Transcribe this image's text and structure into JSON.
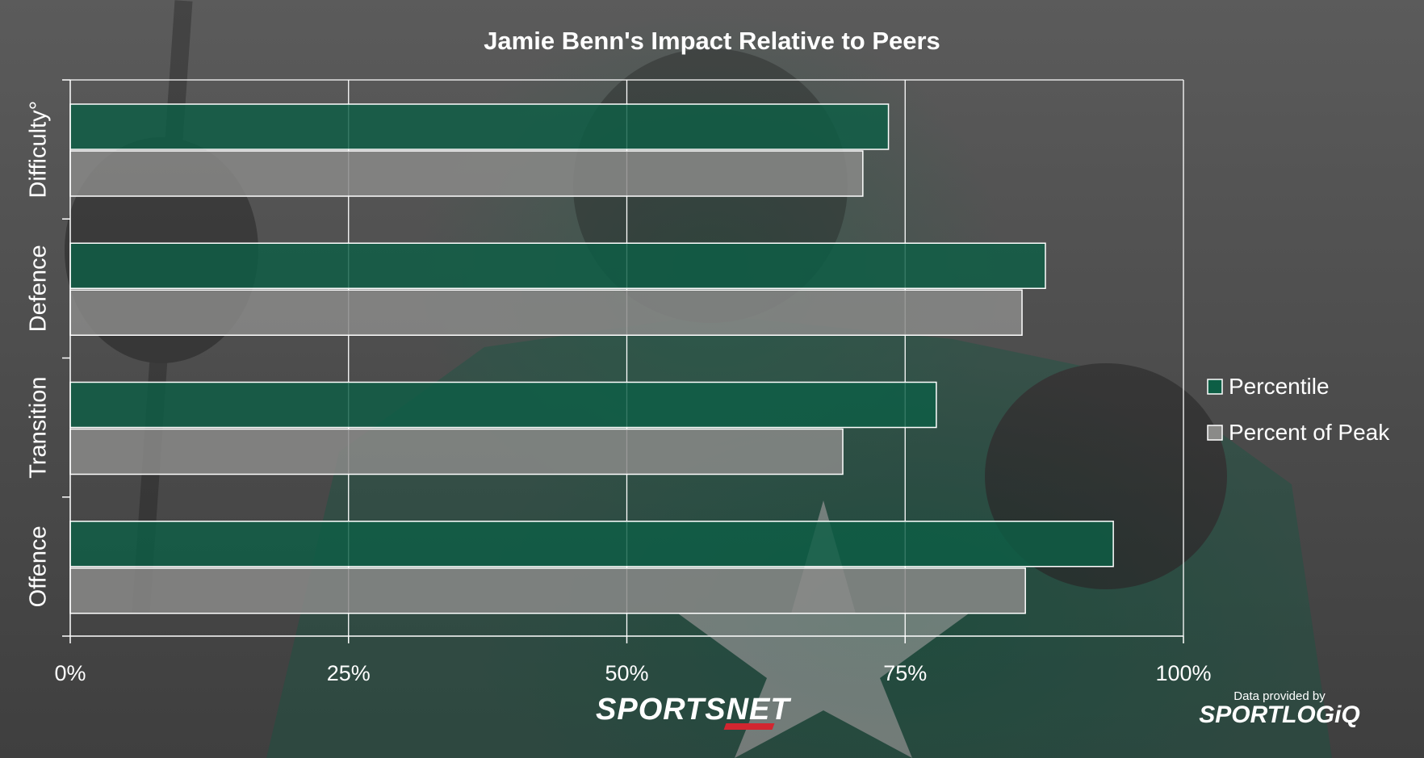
{
  "chart_data": {
    "type": "bar",
    "orientation": "horizontal",
    "title": "Jamie Benn's Impact Relative to Peers",
    "categories": [
      "Difficulty°",
      "Defence",
      "Transition",
      "Offence"
    ],
    "series": [
      {
        "name": "Percentile",
        "color": "#0d5e45",
        "values": [
          73.5,
          87.6,
          77.8,
          93.7
        ]
      },
      {
        "name": "Percent of Peak",
        "color": "#8a8a88",
        "values": [
          71.2,
          85.5,
          69.4,
          85.8
        ]
      }
    ],
    "xlim": [
      0,
      100
    ],
    "x_ticks": [
      "0%",
      "25%",
      "50%",
      "75%",
      "100%"
    ],
    "x_tick_values": [
      0,
      25,
      50,
      75,
      100
    ],
    "grid": true,
    "legend_position": "right"
  },
  "branding": {
    "logo_text": "SPORTSNET",
    "credit_small": "Data provided by",
    "credit_brand": "SPORTLOGiQ"
  }
}
